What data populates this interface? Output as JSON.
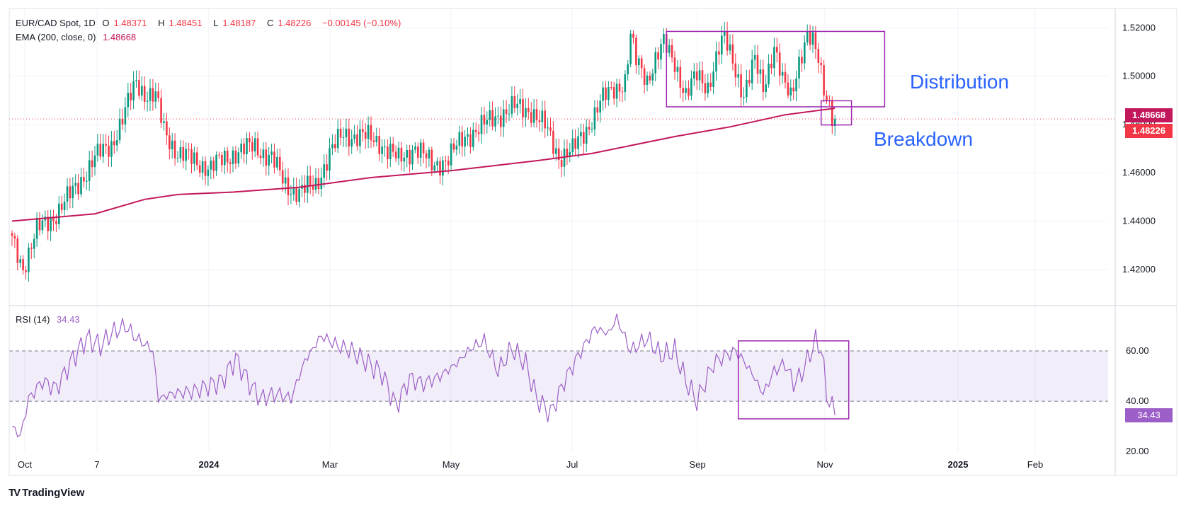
{
  "header": {
    "symbol": "EUR/CAD Spot, 1D",
    "open_label": "O",
    "open": "1.48371",
    "high_label": "H",
    "high": "1.48451",
    "low_label": "L",
    "low": "1.48187",
    "close_label": "C",
    "close": "1.48226",
    "change": "−0.00145 (−0.10%)",
    "ema_label": "EMA (200, close, 0)",
    "ema_value": "1.48668",
    "rsi_label": "RSI (14)",
    "rsi_value": "34.43"
  },
  "colors": {
    "up": "#089981",
    "down": "#f23645",
    "ema": "#c2185b",
    "rsi": "#9c5fc7",
    "box": "#9c27b0",
    "annotation": "#2962ff"
  },
  "price_tags": {
    "ema": "1.48668",
    "close": "1.48226",
    "rsi": "34.43"
  },
  "annotations": {
    "distribution": "Distribution",
    "breakdown": "Breakdown"
  },
  "brand": {
    "name": "TradingView",
    "logo": "TV"
  },
  "chart_data": [
    {
      "type": "candlestick",
      "title": "EUR/CAD Spot, 1D",
      "x_axis_labels": [
        "Oct",
        "7",
        "2024",
        "Mar",
        "May",
        "Jul",
        "Sep",
        "Nov",
        "2025",
        "Feb"
      ],
      "y_ticks": [
        "1.52000",
        "1.50000",
        "1.48000",
        "1.46000",
        "1.44000",
        "1.42000"
      ],
      "ylim": [
        1.405,
        1.528
      ],
      "close_anchors": [
        [
          0,
          1.432
        ],
        [
          4,
          1.421
        ],
        [
          9,
          1.436
        ],
        [
          15,
          1.442
        ],
        [
          22,
          1.452
        ],
        [
          30,
          1.466
        ],
        [
          36,
          1.472
        ],
        [
          40,
          1.482
        ],
        [
          45,
          1.498
        ],
        [
          48,
          1.493
        ],
        [
          52,
          1.491
        ],
        [
          55,
          1.478
        ],
        [
          60,
          1.468
        ],
        [
          66,
          1.465
        ],
        [
          72,
          1.462
        ],
        [
          80,
          1.468
        ],
        [
          88,
          1.471
        ],
        [
          94,
          1.466
        ],
        [
          99,
          1.455
        ],
        [
          104,
          1.452
        ],
        [
          110,
          1.455
        ],
        [
          115,
          1.468
        ],
        [
          120,
          1.476
        ],
        [
          127,
          1.475
        ],
        [
          133,
          1.473
        ],
        [
          140,
          1.465
        ],
        [
          146,
          1.471
        ],
        [
          152,
          1.463
        ],
        [
          158,
          1.466
        ],
        [
          164,
          1.475
        ],
        [
          170,
          1.479
        ],
        [
          176,
          1.484
        ],
        [
          182,
          1.487
        ],
        [
          188,
          1.486
        ],
        [
          193,
          1.479
        ],
        [
          198,
          1.467
        ],
        [
          203,
          1.469
        ],
        [
          208,
          1.478
        ],
        [
          213,
          1.489
        ],
        [
          218,
          1.495
        ],
        [
          222,
          1.498
        ],
        [
          224,
          1.516
        ],
        [
          226,
          1.506
        ],
        [
          230,
          1.499
        ],
        [
          233,
          1.507
        ],
        [
          236,
          1.513
        ],
        [
          240,
          1.506
        ],
        [
          244,
          1.492
        ],
        [
          248,
          1.5
        ],
        [
          252,
          1.496
        ],
        [
          256,
          1.511
        ],
        [
          258,
          1.515
        ],
        [
          261,
          1.507
        ],
        [
          265,
          1.492
        ],
        [
          269,
          1.506
        ],
        [
          272,
          1.496
        ],
        [
          276,
          1.512
        ],
        [
          279,
          1.497
        ],
        [
          282,
          1.492
        ],
        [
          285,
          1.507
        ],
        [
          288,
          1.516
        ],
        [
          290,
          1.513
        ],
        [
          292,
          1.507
        ],
        [
          294,
          1.496
        ],
        [
          296,
          1.489
        ],
        [
          297,
          1.484
        ],
        [
          298,
          1.482
        ]
      ],
      "ema_200": [
        [
          0,
          1.44
        ],
        [
          30,
          1.443
        ],
        [
          48,
          1.449
        ],
        [
          60,
          1.451
        ],
        [
          80,
          1.452
        ],
        [
          104,
          1.454
        ],
        [
          130,
          1.458
        ],
        [
          160,
          1.461
        ],
        [
          190,
          1.465
        ],
        [
          210,
          1.468
        ],
        [
          240,
          1.475
        ],
        [
          260,
          1.479
        ],
        [
          280,
          1.484
        ],
        [
          298,
          1.4867
        ]
      ],
      "last_close": 1.48226,
      "ema_last": 1.48668,
      "boxes": [
        {
          "label": "Distribution",
          "bar_start": 237,
          "bar_end": 316,
          "price_high": 1.5185,
          "price_low": 1.4873
        },
        {
          "label": "Breakdown",
          "bar_start": 293,
          "bar_end": 304,
          "price_high": 1.4898,
          "price_low": 1.4798
        }
      ]
    },
    {
      "type": "line",
      "title": "RSI (14)",
      "y_ticks": [
        "60.00",
        "40.00",
        "20.00"
      ],
      "ylim": [
        19.5,
        78
      ],
      "band": [
        40,
        60
      ],
      "anchors": [
        [
          0,
          30
        ],
        [
          3,
          26
        ],
        [
          6,
          41
        ],
        [
          11,
          48
        ],
        [
          16,
          45
        ],
        [
          22,
          57
        ],
        [
          27,
          65
        ],
        [
          32,
          62
        ],
        [
          36,
          67
        ],
        [
          41,
          70
        ],
        [
          45,
          65
        ],
        [
          49,
          62
        ],
        [
          51,
          60
        ],
        [
          53,
          41
        ],
        [
          58,
          43
        ],
        [
          66,
          44
        ],
        [
          76,
          48
        ],
        [
          81,
          57
        ],
        [
          86,
          47
        ],
        [
          90,
          41
        ],
        [
          96,
          43
        ],
        [
          101,
          41
        ],
        [
          106,
          56
        ],
        [
          112,
          66
        ],
        [
          118,
          62
        ],
        [
          123,
          60
        ],
        [
          129,
          55
        ],
        [
          134,
          51
        ],
        [
          139,
          38
        ],
        [
          144,
          49
        ],
        [
          149,
          47
        ],
        [
          155,
          50
        ],
        [
          161,
          55
        ],
        [
          166,
          61
        ],
        [
          171,
          64
        ],
        [
          176,
          52
        ],
        [
          181,
          61
        ],
        [
          186,
          55
        ],
        [
          190,
          41
        ],
        [
          195,
          35
        ],
        [
          200,
          48
        ],
        [
          205,
          58
        ],
        [
          211,
          69
        ],
        [
          216,
          67
        ],
        [
          219,
          73
        ],
        [
          224,
          60
        ],
        [
          230,
          65
        ],
        [
          235,
          58
        ],
        [
          240,
          60
        ],
        [
          244,
          48
        ],
        [
          248,
          40
        ],
        [
          254,
          55
        ],
        [
          258,
          58
        ],
        [
          262,
          60
        ],
        [
          265,
          56
        ],
        [
          268,
          51
        ],
        [
          272,
          43
        ],
        [
          276,
          52
        ],
        [
          280,
          55
        ],
        [
          283,
          47
        ],
        [
          286,
          51
        ],
        [
          289,
          59
        ],
        [
          291,
          64
        ],
        [
          293,
          61
        ],
        [
          295,
          43
        ],
        [
          297,
          37
        ],
        [
          298,
          34.43
        ]
      ],
      "boxes": [
        {
          "bar_start": 263,
          "bar_end": 303,
          "value_high": 64,
          "value_low": 33
        }
      ]
    }
  ]
}
